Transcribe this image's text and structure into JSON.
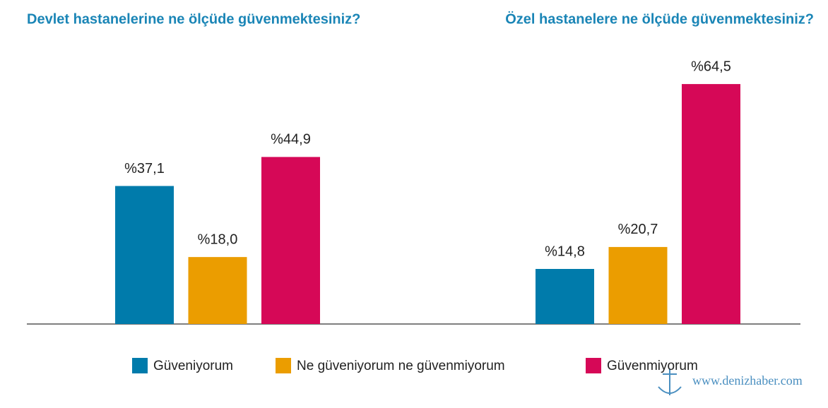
{
  "chart_data": {
    "type": "bar",
    "categories": [
      "Devlet hastanelerine ne ölçüde güvenmektesiniz?",
      "Özel hastanelere ne ölçüde güvenmektesiniz?"
    ],
    "series": [
      {
        "name": "Güveniyorum",
        "color": "#007bab",
        "values": [
          37.1,
          14.8
        ],
        "value_labels": [
          "%37,1",
          "%14,8"
        ]
      },
      {
        "name": "Ne güveniyorum ne güvenmiyorum",
        "color": "#eb9d00",
        "values": [
          18.0,
          20.7
        ],
        "value_labels": [
          "%18,0",
          "%20,7"
        ]
      },
      {
        "name": "Güvenmiyorum",
        "color": "#d60857",
        "values": [
          44.9,
          64.5
        ],
        "value_labels": [
          "%44,9",
          "%64,5"
        ]
      }
    ]
  },
  "watermark": "www.denizhaber.com"
}
